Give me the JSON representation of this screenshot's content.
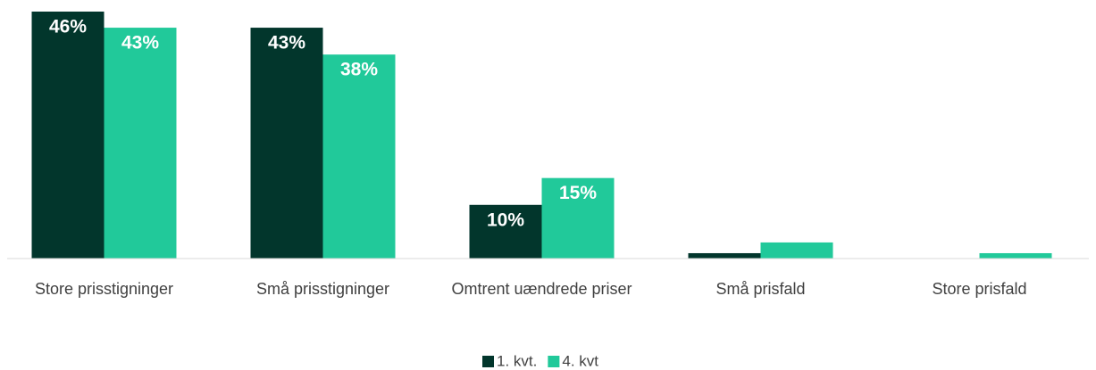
{
  "chart_data": {
    "type": "bar",
    "categories": [
      "Store prisstigninger",
      "Små prisstigninger",
      "Omtrent uændrede priser",
      "Små prisfald",
      "Store prisfald"
    ],
    "series": [
      {
        "name": "1. kvt.",
        "color": "#02362c",
        "values": [
          46,
          43,
          10,
          1,
          0
        ],
        "value_labels": [
          "46%",
          "43%",
          "10%",
          null,
          null
        ]
      },
      {
        "name": "4. kvt",
        "color": "#21c99a",
        "values": [
          43,
          38,
          15,
          3,
          1
        ],
        "value_labels": [
          "43%",
          "38%",
          "15%",
          null,
          null
        ]
      }
    ],
    "ylim": [
      0,
      46
    ],
    "legend": "bottom"
  }
}
